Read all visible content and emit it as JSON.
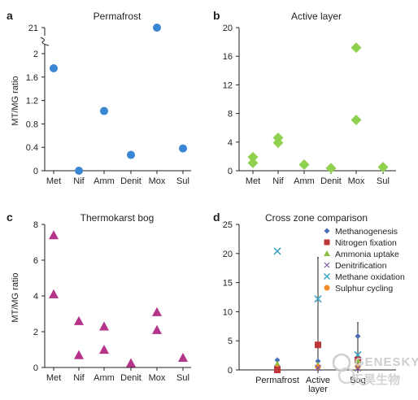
{
  "watermark": {
    "line1": "GENESKY",
    "line2": "天昊生物"
  },
  "colors": {
    "permafrost": "#3b86d4",
    "active": "#8fd14f",
    "bog": "#b5338a",
    "axis": "#231f20",
    "legend": {
      "Methanogenesis": "#4a6fb5",
      "Nitrogen fixation": "#c0373a",
      "Ammonia uptake": "#8cbf3f",
      "Denitrification": "#7a59a6",
      "Methane oxidation": "#3fa6c6",
      "Sulphur cycling": "#f28c28"
    }
  },
  "chart_data": [
    {
      "panel": "a",
      "type": "scatter",
      "title": "Permafrost",
      "ylabel": "MT/MG ratio",
      "categories": [
        "Met",
        "Nif",
        "Amm",
        "Denit",
        "Mox",
        "Sul"
      ],
      "yticks": [
        "0",
        "0.4",
        "0.8",
        "1.2",
        "1.6",
        "2",
        "21"
      ],
      "ylim": [
        0,
        2
      ],
      "axis_break": {
        "upper_tick": "21",
        "upper_value": 21
      },
      "marker": "circle",
      "points": [
        {
          "category": "Met",
          "y": 1.75
        },
        {
          "category": "Nif",
          "y": 0.0
        },
        {
          "category": "Amm",
          "y": 1.02
        },
        {
          "category": "Denit",
          "y": 0.27
        },
        {
          "category": "Mox",
          "y": 21
        },
        {
          "category": "Sul",
          "y": 0.38
        }
      ]
    },
    {
      "panel": "b",
      "type": "scatter",
      "title": "Active layer",
      "ylabel": "",
      "categories": [
        "Met",
        "Nif",
        "Amm",
        "Denit",
        "Mox",
        "Sul"
      ],
      "yticks": [
        "0",
        "4",
        "8",
        "12",
        "16",
        "20"
      ],
      "ylim": [
        0,
        20
      ],
      "marker": "diamond",
      "points": [
        {
          "category": "Met",
          "y": 1.9
        },
        {
          "category": "Met",
          "y": 1.1
        },
        {
          "category": "Nif",
          "y": 4.6
        },
        {
          "category": "Nif",
          "y": 3.9
        },
        {
          "category": "Amm",
          "y": 0.85
        },
        {
          "category": "Denit",
          "y": 0.35
        },
        {
          "category": "Mox",
          "y": 17.2
        },
        {
          "category": "Mox",
          "y": 7.1
        },
        {
          "category": "Sul",
          "y": 0.5
        }
      ]
    },
    {
      "panel": "c",
      "type": "scatter",
      "title": "Thermokarst bog",
      "ylabel": "MT/MG ratio",
      "categories": [
        "Met",
        "Nif",
        "Amm",
        "Denit",
        "Mox",
        "Sul"
      ],
      "yticks": [
        "0",
        "2",
        "4",
        "6",
        "8"
      ],
      "ylim": [
        0,
        8
      ],
      "marker": "triangle",
      "points": [
        {
          "category": "Met",
          "y": 7.4
        },
        {
          "category": "Met",
          "y": 4.1
        },
        {
          "category": "Nif",
          "y": 2.6
        },
        {
          "category": "Nif",
          "y": 0.7
        },
        {
          "category": "Amm",
          "y": 2.3
        },
        {
          "category": "Amm",
          "y": 1.0
        },
        {
          "category": "Denit",
          "y": 0.25
        },
        {
          "category": "Mox",
          "y": 3.1
        },
        {
          "category": "Mox",
          "y": 2.1
        },
        {
          "category": "Sul",
          "y": 0.55
        }
      ]
    },
    {
      "panel": "d",
      "type": "scatter",
      "title": "Cross zone comparison",
      "ylabel": "",
      "categories": [
        "Permafrost",
        "Active\nlayer",
        "Bog"
      ],
      "yticks": [
        "0",
        "5",
        "10",
        "15",
        "20",
        "25"
      ],
      "ylim": [
        0,
        25
      ],
      "legend_position": "top-right",
      "legend": [
        "Methanogenesis",
        "Nitrogen fixation",
        "Ammonia uptake",
        "Denitrification",
        "Methane oxidation",
        "Sulphur cycling"
      ],
      "errorbars": [
        {
          "category": "Active\nlayer",
          "low": 0.0,
          "high": 19.3
        },
        {
          "category": "Bog",
          "low": 0.0,
          "high": 8.1
        }
      ],
      "points": [
        {
          "category": "Permafrost",
          "series": "Methane oxidation",
          "y": 20.4
        },
        {
          "category": "Permafrost",
          "series": "Methanogenesis",
          "y": 1.7
        },
        {
          "category": "Permafrost",
          "series": "Ammonia uptake",
          "y": 1.0
        },
        {
          "category": "Permafrost",
          "series": "Sulphur cycling",
          "y": 0.4
        },
        {
          "category": "Permafrost",
          "series": "Denitrification",
          "y": 0.25
        },
        {
          "category": "Permafrost",
          "series": "Nitrogen fixation",
          "y": 0.0
        },
        {
          "category": "Active\nlayer",
          "series": "Methane oxidation",
          "y": 12.2
        },
        {
          "category": "Active\nlayer",
          "series": "Nitrogen fixation",
          "y": 4.3
        },
        {
          "category": "Active\nlayer",
          "series": "Methanogenesis",
          "y": 1.5
        },
        {
          "category": "Active\nlayer",
          "series": "Ammonia uptake",
          "y": 0.85
        },
        {
          "category": "Active\nlayer",
          "series": "Sulphur cycling",
          "y": 0.5
        },
        {
          "category": "Active\nlayer",
          "series": "Denitrification",
          "y": 0.35
        },
        {
          "category": "Bog",
          "series": "Methanogenesis",
          "y": 5.8
        },
        {
          "category": "Bog",
          "series": "Methane oxidation",
          "y": 2.6
        },
        {
          "category": "Bog",
          "series": "Nitrogen fixation",
          "y": 1.7
        },
        {
          "category": "Bog",
          "series": "Ammonia uptake",
          "y": 1.6
        },
        {
          "category": "Bog",
          "series": "Sulphur cycling",
          "y": 0.55
        },
        {
          "category": "Bog",
          "series": "Denitrification",
          "y": 0.25
        }
      ]
    }
  ]
}
